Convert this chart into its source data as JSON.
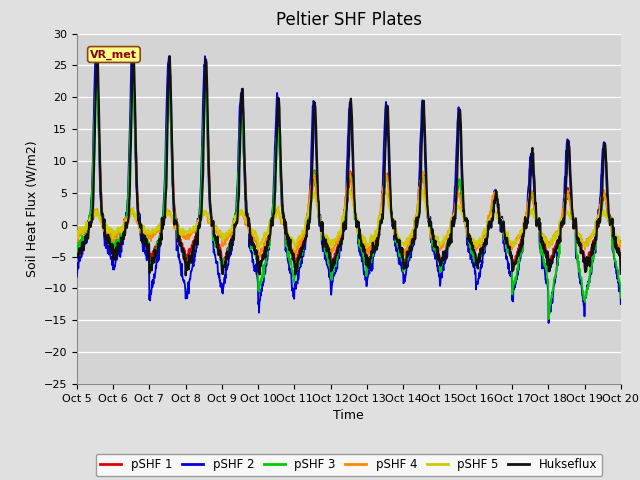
{
  "title": "Peltier SHF Plates",
  "xlabel": "Time",
  "ylabel": "Soil Heat Flux (W/m2)",
  "ylim": [
    -25,
    30
  ],
  "yticks": [
    -25,
    -20,
    -15,
    -10,
    -5,
    0,
    5,
    10,
    15,
    20,
    25,
    30
  ],
  "xtick_labels": [
    "Oct 5",
    "Oct 6",
    "Oct 7",
    "Oct 8",
    "Oct 9",
    "Oct 10",
    "Oct 11",
    "Oct 12",
    "Oct 13",
    "Oct 14",
    "Oct 15",
    "Oct 16",
    "Oct 17",
    "Oct 18",
    "Oct 19",
    "Oct 20"
  ],
  "legend_labels": [
    "pSHF 1",
    "pSHF 2",
    "pSHF 3",
    "pSHF 4",
    "pSHF 5",
    "Hukseflux"
  ],
  "line_colors": [
    "#dd0000",
    "#0000dd",
    "#00cc00",
    "#ff8800",
    "#cccc00",
    "#111111"
  ],
  "line_widths": [
    1.3,
    1.3,
    1.3,
    1.3,
    1.3,
    1.6
  ],
  "bg_color": "#e0e0e0",
  "plot_bg_color": "#d4d4d4",
  "vr_met_label": "VR_met",
  "vr_met_box_color": "#ffff88",
  "vr_met_text_color": "#8B0000",
  "title_fontsize": 12,
  "axis_label_fontsize": 9,
  "tick_fontsize": 8,
  "days": 15,
  "pts_per_day": 96
}
